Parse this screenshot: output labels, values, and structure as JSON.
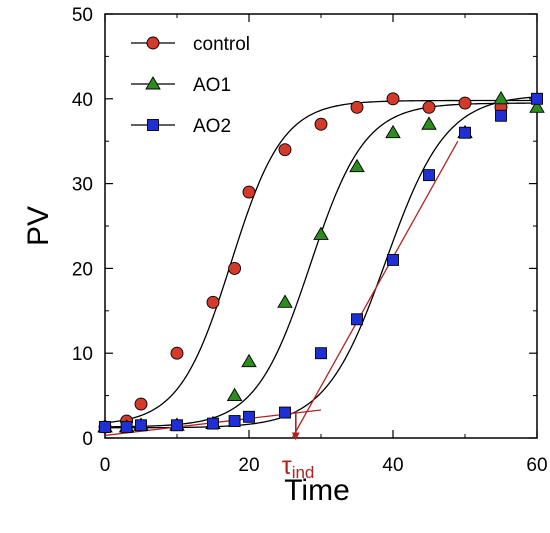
{
  "chart_data": {
    "type": "scatter",
    "title": "",
    "xlabel": "Time",
    "ylabel": "PV",
    "xlim": [
      0,
      60
    ],
    "ylim": [
      0,
      50
    ],
    "xticks": [
      0,
      20,
      40,
      60
    ],
    "yticks": [
      0,
      10,
      20,
      30,
      40,
      50
    ],
    "grid": false,
    "legend_position": "top-left",
    "series": [
      {
        "name": "control",
        "marker": "circle",
        "color": "#d43a2a",
        "x": [
          0,
          3,
          5,
          10,
          15,
          18,
          20,
          25,
          30,
          35,
          40,
          45,
          50,
          55
        ],
        "y": [
          1.3,
          2.0,
          4.0,
          10.0,
          16.0,
          20.0,
          29.0,
          34.0,
          37.0,
          39.0,
          40.0,
          39.0,
          39.5,
          39.0
        ],
        "fit_curve": {
          "A1": 1.5,
          "A2": 39.8,
          "x0": 17.5,
          "dx": 3.6
        }
      },
      {
        "name": "AO1",
        "marker": "triangle",
        "color": "#2e8b1f",
        "x": [
          0,
          3,
          5,
          10,
          15,
          18,
          20,
          25,
          30,
          35,
          40,
          45,
          50,
          55,
          60
        ],
        "y": [
          1.3,
          1.3,
          1.5,
          1.5,
          1.7,
          5.0,
          9.0,
          16.0,
          24.0,
          32.0,
          36.0,
          37.0,
          36.0,
          40.0,
          39.0
        ],
        "fit_curve": {
          "A1": 1.3,
          "A2": 39.5,
          "x0": 28.5,
          "dx": 3.8
        }
      },
      {
        "name": "AO2",
        "marker": "square",
        "color": "#1f2fd6",
        "x": [
          0,
          3,
          5,
          10,
          15,
          18,
          20,
          25,
          30,
          35,
          40,
          45,
          50,
          55,
          60
        ],
        "y": [
          1.3,
          1.3,
          1.5,
          1.5,
          1.7,
          2.0,
          2.5,
          3.0,
          10.0,
          14.0,
          21.0,
          31.0,
          36.0,
          38.0,
          40.0
        ],
        "fit_curve": {
          "A1": 1.2,
          "A2": 40.5,
          "x0": 39.0,
          "dx": 4.2
        }
      }
    ],
    "annotations": [
      {
        "type": "tangent-line",
        "color": "#b22222",
        "segments": [
          {
            "x": [
              0,
              30
            ],
            "y": [
              0.3,
              3.3
            ]
          },
          {
            "x": [
              26,
              49
            ],
            "y": [
              0,
              35
            ]
          }
        ]
      },
      {
        "type": "arrow",
        "color": "#b22222",
        "x": 26.5,
        "y_from": 3.2,
        "y_to": 0.2,
        "label_main": "τ",
        "label_sub": "ind"
      }
    ]
  }
}
